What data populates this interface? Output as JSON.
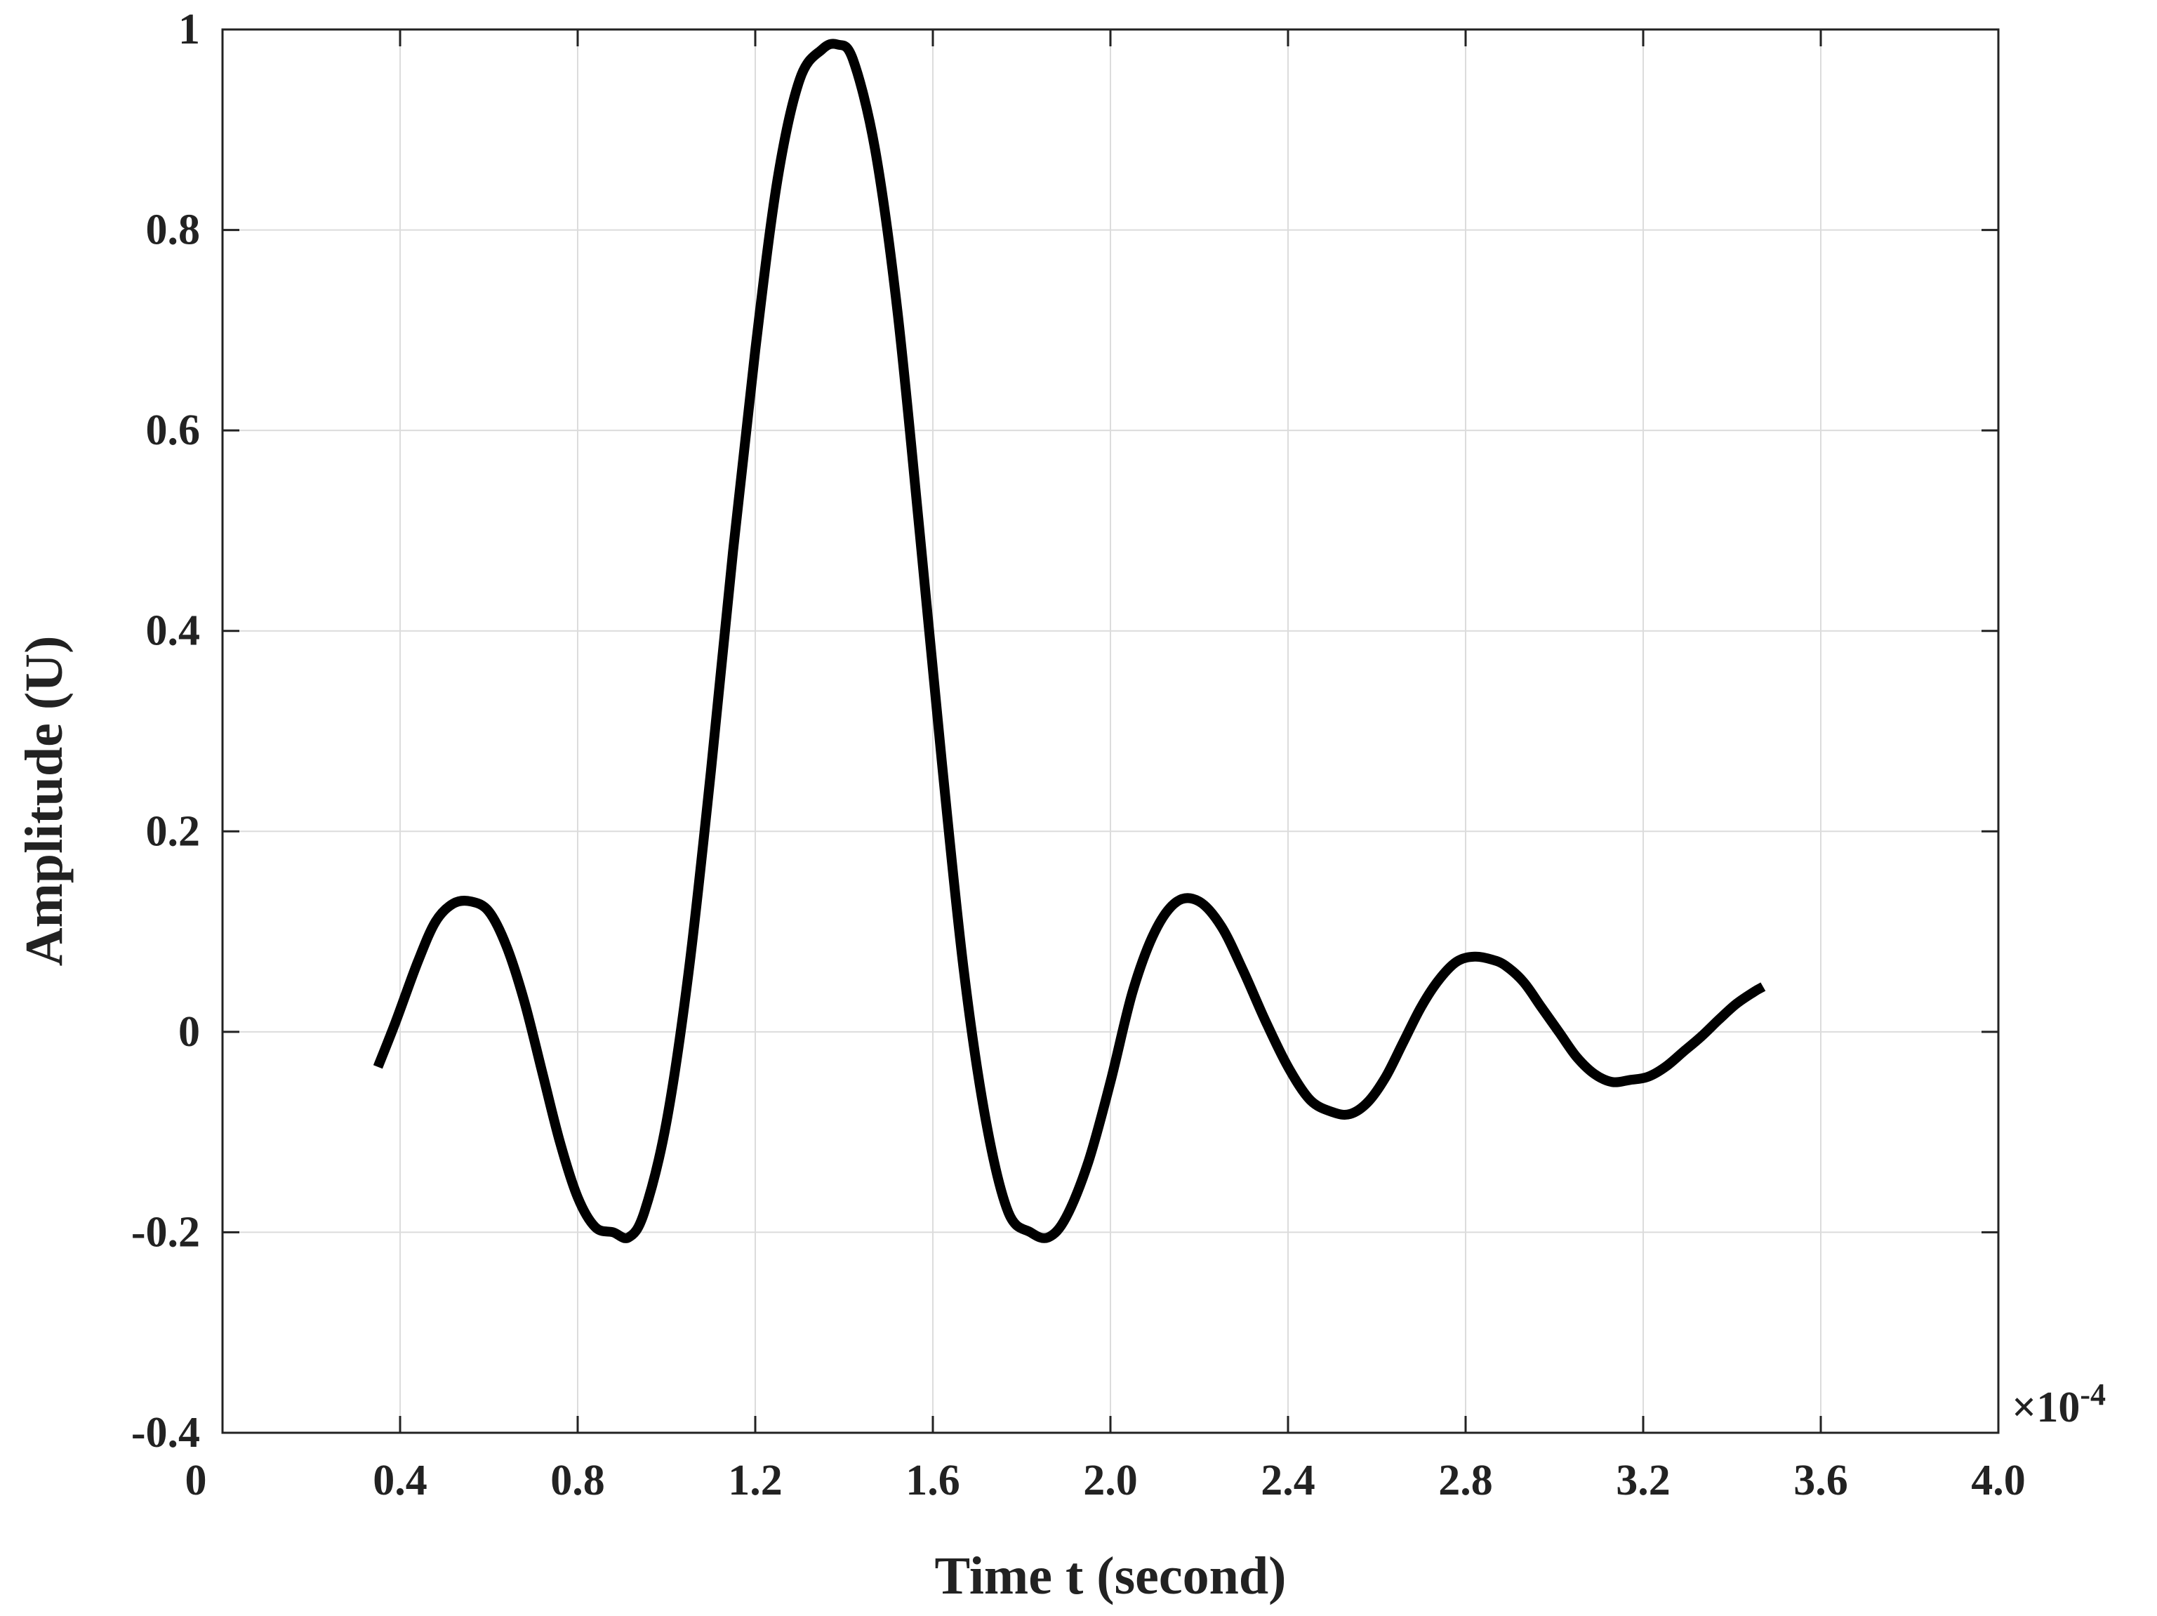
{
  "chart_data": {
    "type": "line",
    "title": "",
    "xlabel": "Time t (second)",
    "ylabel": "Amplitude (U)",
    "x_multiplier_label": "×10",
    "x_multiplier_exponent": "-4",
    "xlim": [
      0,
      4.0
    ],
    "ylim": [
      -0.4,
      1
    ],
    "grid": true,
    "x_ticks": [
      0,
      0.4,
      0.8,
      1.2,
      1.6,
      2.0,
      2.4,
      2.8,
      3.2,
      3.6,
      4.0
    ],
    "x_tick_labels": [
      "0",
      "0.4",
      "0.8",
      "1.2",
      "1.6",
      "2.0",
      "2.4",
      "2.8",
      "3.2",
      "3.6",
      "4.0"
    ],
    "y_ticks": [
      -0.4,
      -0.2,
      0,
      0.2,
      0.4,
      0.6,
      0.8,
      1
    ],
    "y_tick_labels": [
      "-0.4",
      "-0.2",
      "0",
      "0.2",
      "0.4",
      "0.6",
      "0.8",
      "1"
    ],
    "series": [
      {
        "color": "#000000",
        "x": [
          0.35,
          0.39,
          0.44,
          0.48,
          0.52,
          0.56,
          0.6,
          0.64,
          0.68,
          0.72,
          0.76,
          0.8,
          0.84,
          0.88,
          0.915,
          0.95,
          1.0,
          1.05,
          1.1,
          1.15,
          1.2,
          1.25,
          1.3,
          1.35,
          1.385,
          1.42,
          1.47,
          1.52,
          1.57,
          1.62,
          1.67,
          1.72,
          1.77,
          1.82,
          1.86,
          1.9,
          1.95,
          2.0,
          2.05,
          2.1,
          2.15,
          2.2,
          2.25,
          2.3,
          2.35,
          2.4,
          2.45,
          2.5,
          2.54,
          2.58,
          2.62,
          2.66,
          2.7,
          2.74,
          2.78,
          2.82,
          2.86,
          2.89,
          2.93,
          2.97,
          3.01,
          3.05,
          3.09,
          3.13,
          3.17,
          3.21,
          3.25,
          3.29,
          3.33,
          3.37,
          3.41,
          3.45,
          3.47
        ],
        "y": [
          -0.035,
          0.01,
          0.07,
          0.11,
          0.128,
          0.13,
          0.12,
          0.085,
          0.03,
          -0.04,
          -0.11,
          -0.165,
          -0.195,
          -0.2,
          -0.205,
          -0.18,
          -0.09,
          0.06,
          0.26,
          0.48,
          0.68,
          0.85,
          0.95,
          0.98,
          0.985,
          0.97,
          0.88,
          0.72,
          0.5,
          0.27,
          0.06,
          -0.09,
          -0.18,
          -0.2,
          -0.205,
          -0.185,
          -0.13,
          -0.05,
          0.04,
          0.1,
          0.13,
          0.13,
          0.105,
          0.06,
          0.01,
          -0.035,
          -0.068,
          -0.08,
          -0.082,
          -0.07,
          -0.045,
          -0.01,
          0.025,
          0.052,
          0.07,
          0.075,
          0.072,
          0.066,
          0.05,
          0.025,
          0.0,
          -0.025,
          -0.042,
          -0.05,
          -0.048,
          -0.045,
          -0.035,
          -0.02,
          -0.005,
          0.012,
          0.028,
          0.04,
          0.045
        ]
      }
    ]
  }
}
